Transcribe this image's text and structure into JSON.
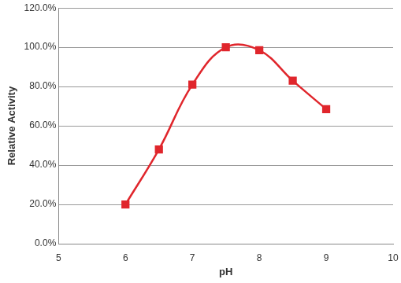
{
  "chart_data": {
    "type": "line",
    "x_label": "pH",
    "y_label": "Relative Activity",
    "x": [
      6,
      6.5,
      7,
      7.5,
      8,
      8.5,
      9
    ],
    "values": [
      20.0,
      48.0,
      81.0,
      100.0,
      98.5,
      83.0,
      68.5
    ],
    "color": "#e0262c",
    "marker": "square",
    "xlim": [
      5,
      10
    ],
    "xticks": [
      5,
      6,
      7,
      8,
      9,
      10
    ],
    "ylim": [
      0,
      120
    ],
    "yticks": [
      {
        "value": 0,
        "label": "0.0%"
      },
      {
        "value": 20,
        "label": "20.0%"
      },
      {
        "value": 40,
        "label": "40.0%"
      },
      {
        "value": 60,
        "label": "60.0%"
      },
      {
        "value": 80,
        "label": "80.0%"
      },
      {
        "value": 100,
        "label": "100.0%"
      },
      {
        "value": 120,
        "label": "120.0%"
      }
    ],
    "grid": true
  }
}
